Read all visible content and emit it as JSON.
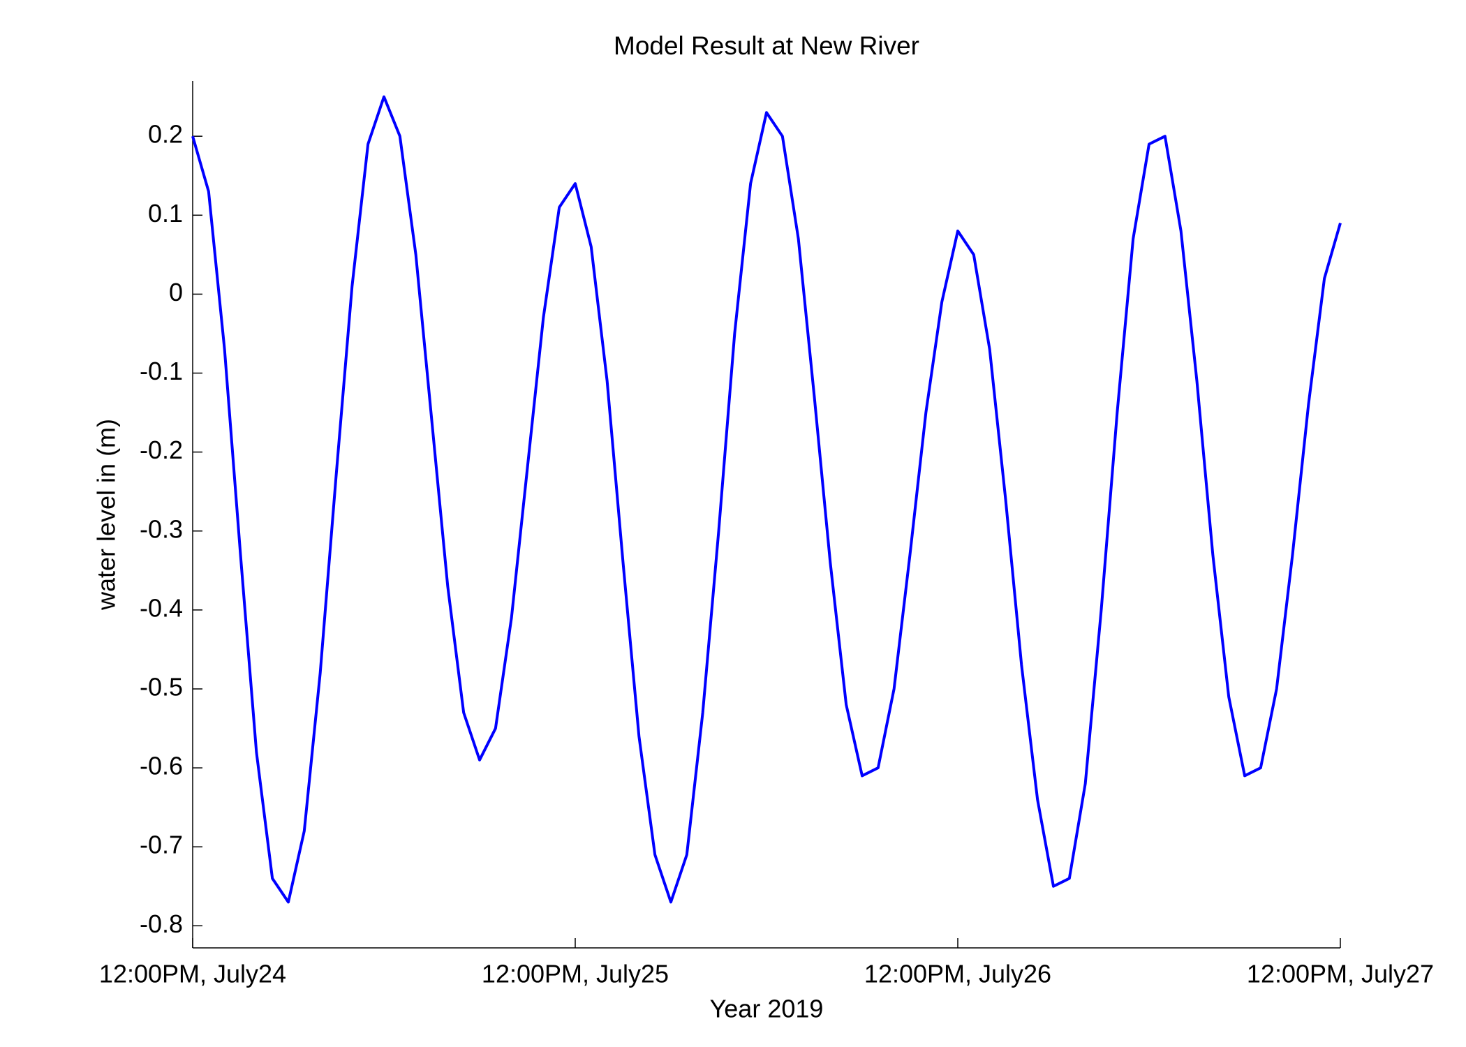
{
  "chart_data": {
    "type": "line",
    "title": "Model Result at New River",
    "x_label": "Year 2019",
    "y_label": "water level in (m)",
    "x": [
      0,
      1,
      2,
      3,
      4,
      5,
      6,
      7,
      8,
      9,
      10,
      11,
      12,
      13,
      14,
      15,
      16,
      17,
      18,
      19,
      20,
      21,
      22,
      23,
      24,
      25,
      26,
      27,
      28,
      29,
      30,
      31,
      32,
      33,
      34,
      35,
      36,
      37,
      38,
      39,
      40,
      41,
      42,
      43,
      44,
      45,
      46,
      47,
      48,
      49,
      50,
      51,
      52,
      53,
      54,
      55,
      56,
      57,
      58,
      59,
      60,
      61,
      62,
      63,
      64,
      65,
      66,
      67,
      68,
      69,
      70,
      71,
      72
    ],
    "series": [
      {
        "color": "#0000ff",
        "values": [
          0.2,
          0.13,
          -0.07,
          -0.33,
          -0.58,
          -0.74,
          -0.77,
          -0.68,
          -0.48,
          -0.23,
          0.01,
          0.19,
          0.25,
          0.2,
          0.05,
          -0.16,
          -0.37,
          -0.53,
          -0.59,
          -0.55,
          -0.41,
          -0.22,
          -0.03,
          0.11,
          0.14,
          0.06,
          -0.11,
          -0.34,
          -0.56,
          -0.71,
          -0.77,
          -0.71,
          -0.53,
          -0.3,
          -0.05,
          0.14,
          0.23,
          0.2,
          0.07,
          -0.13,
          -0.34,
          -0.52,
          -0.61,
          -0.6,
          -0.5,
          -0.33,
          -0.15,
          -0.01,
          0.08,
          0.05,
          -0.07,
          -0.26,
          -0.47,
          -0.64,
          -0.75,
          -0.74,
          -0.62,
          -0.4,
          -0.15,
          0.07,
          0.19,
          0.2,
          0.08,
          -0.11,
          -0.33,
          -0.51,
          -0.61,
          -0.6,
          -0.5,
          -0.33,
          -0.14,
          0.02,
          0.09
        ]
      }
    ],
    "xlim": [
      0,
      72
    ],
    "xticks": [
      {
        "value": 0,
        "label": "12:00PM, July24"
      },
      {
        "value": 24,
        "label": "12:00PM, July25"
      },
      {
        "value": 48,
        "label": "12:00PM, July26"
      },
      {
        "value": 72,
        "label": "12:00PM, July27"
      }
    ],
    "ylim": [
      -0.828,
      0.27
    ],
    "yticks": [
      -0.8,
      -0.7,
      -0.6,
      -0.5,
      -0.4,
      -0.3,
      -0.2,
      -0.1,
      0,
      0.1,
      0.2
    ],
    "grid": false
  }
}
